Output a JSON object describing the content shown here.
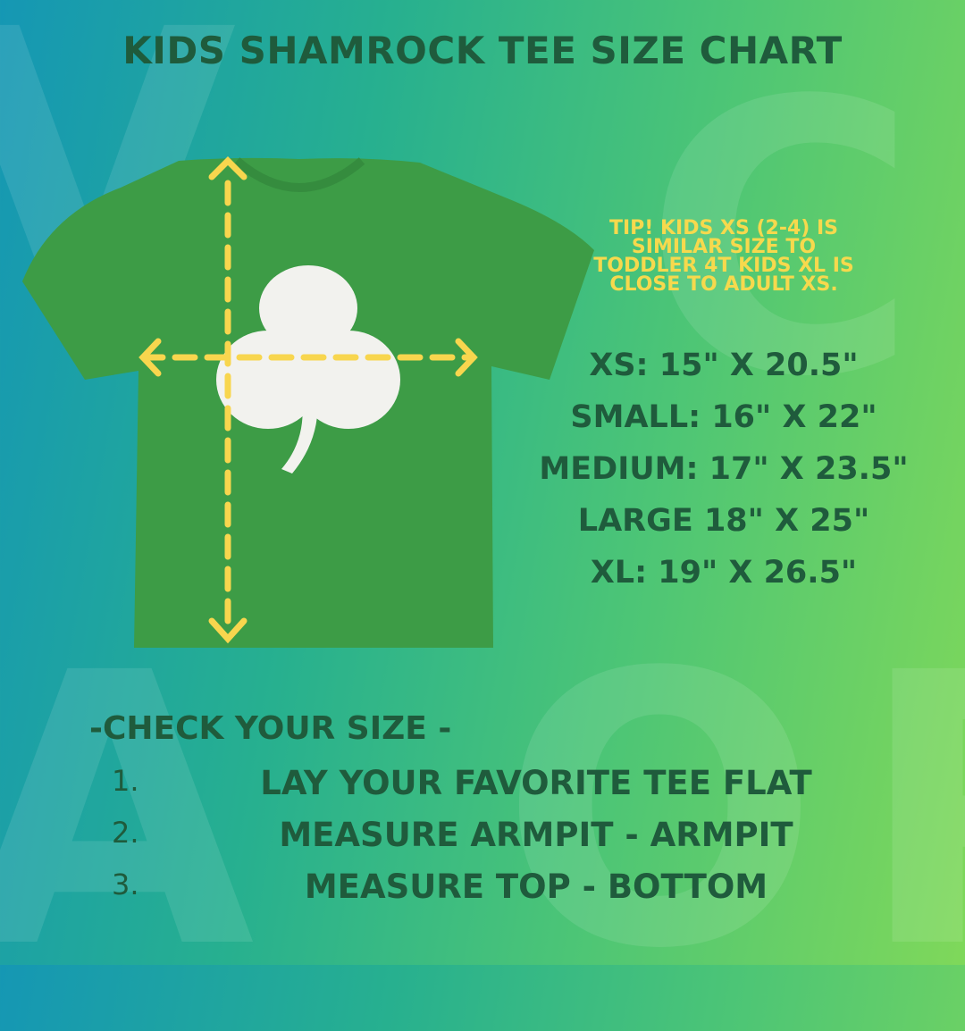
{
  "title": "KIDS SHAMROCK TEE SIZE CHART",
  "tip": "TIP! KIDS XS (2-4) IS SIMILAR SIZE TO TODDLER 4T KIDS XL IS CLOSE TO ADULT XS.",
  "sizes": [
    "XS: 15\" X 20.5\"",
    "SMALL: 16\" X 22\"",
    "MEDIUM: 17\" X 23.5\"",
    "LARGE 18\" X 25\"",
    "XL: 19\" X 26.5\""
  ],
  "check_title": "-CHECK YOUR SIZE -",
  "steps": [
    {
      "n": "1.",
      "t": "LAY YOUR FAVORITE TEE FLAT"
    },
    {
      "n": "2.",
      "t": "MEASURE ARMPIT - ARMPIT"
    },
    {
      "n": "3.",
      "t": "MEASURE TOP - BOTTOM"
    }
  ],
  "colors": {
    "text": "#1f5b3c",
    "tip": "#f6d94d",
    "shirt": "#3d9c46",
    "arrow": "#f8d64e"
  }
}
